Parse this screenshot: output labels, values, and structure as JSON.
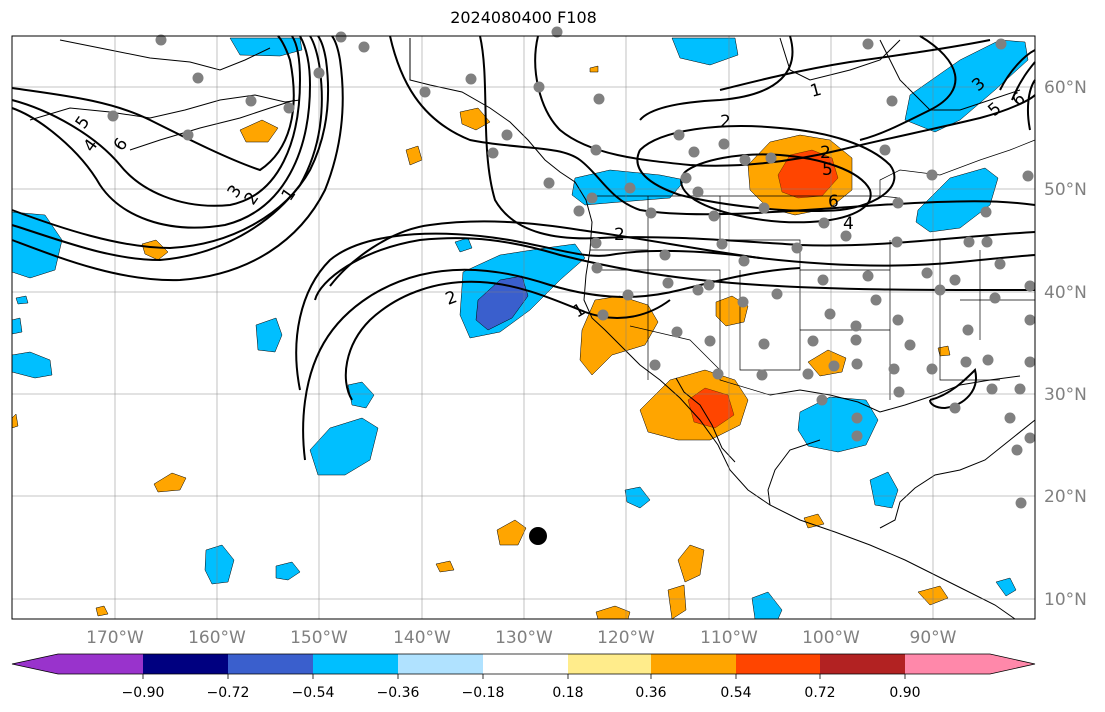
{
  "title": "2024080400 F108",
  "map": {
    "lon_range": [
      -180,
      -80
    ],
    "lat_range": [
      8,
      65
    ],
    "lon_ticks": [
      {
        "value": -170,
        "label": "170°W"
      },
      {
        "value": -160,
        "label": "160°W"
      },
      {
        "value": -150,
        "label": "150°W"
      },
      {
        "value": -140,
        "label": "140°W"
      },
      {
        "value": -130,
        "label": "130°W"
      },
      {
        "value": -120,
        "label": "120°W"
      },
      {
        "value": -110,
        "label": "110°W"
      },
      {
        "value": -100,
        "label": "100°W"
      },
      {
        "value": -90,
        "label": "90°W"
      }
    ],
    "lat_ticks": [
      {
        "value": 60,
        "label": "60°N"
      },
      {
        "value": 50,
        "label": "50°N"
      },
      {
        "value": 40,
        "label": "40°N"
      },
      {
        "value": 30,
        "label": "30°N"
      },
      {
        "value": 20,
        "label": "20°N"
      },
      {
        "value": 10,
        "label": "10°N"
      }
    ],
    "grid": true,
    "contour_labels": [
      "5",
      "4",
      "6",
      "3",
      "2",
      "1",
      "2",
      "2",
      "1",
      "2",
      "1",
      "2",
      "5",
      "6",
      "4",
      "5",
      "6",
      "3"
    ]
  },
  "colorbar": {
    "colors": [
      "#9933cc",
      "#000080",
      "#3a5fcd",
      "#00bfff",
      "#b0e2ff",
      "#ffffff",
      "#ffec8b",
      "#ffa500",
      "#ff4500",
      "#b22222",
      "#ff88aa"
    ],
    "tick_labels": [
      "−0.90",
      "−0.72",
      "−0.54",
      "−0.36",
      "−0.18",
      "0.18",
      "0.36",
      "0.54",
      "0.72",
      "0.90"
    ],
    "extend": "both"
  }
}
